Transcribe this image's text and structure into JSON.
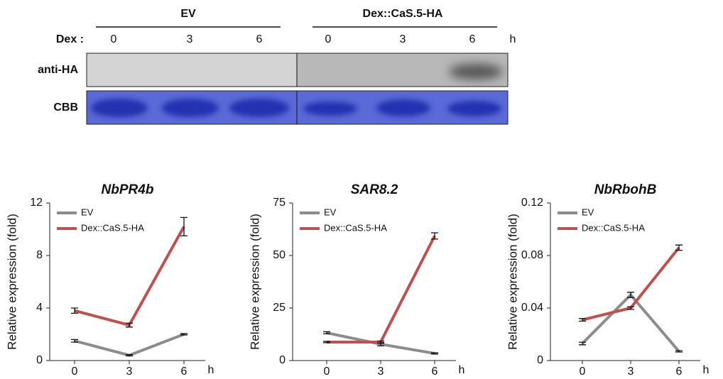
{
  "blot": {
    "groups": [
      "EV",
      "Dex::CaS.5-HA"
    ],
    "treatment_label": "Dex :",
    "timepoints": [
      "0",
      "3",
      "6",
      "0",
      "3",
      "6"
    ],
    "unit": "h",
    "rows": [
      "anti-HA",
      "CBB"
    ]
  },
  "chart_data": [
    {
      "type": "line",
      "title": "NbPR4b",
      "ylabel": "Relative expression (fold)",
      "xunit": "h",
      "categories": [
        "0",
        "3",
        "6"
      ],
      "ylim": [
        0,
        12
      ],
      "yticks": [
        0,
        4,
        8,
        12
      ],
      "series": [
        {
          "name": "EV",
          "color": "#8c8c8c",
          "values": [
            1.5,
            0.4,
            2.0
          ],
          "errors": [
            0.1,
            0.05,
            0.05
          ]
        },
        {
          "name": "Dex::CaS.5-HA",
          "color": "#c0504d",
          "values": [
            3.8,
            2.7,
            10.2
          ],
          "errors": [
            0.2,
            0.15,
            0.7
          ]
        }
      ]
    },
    {
      "type": "line",
      "title": "SAR8.2",
      "ylabel": "Relative expression (fold)",
      "xunit": "h",
      "categories": [
        "0",
        "3",
        "6"
      ],
      "ylim": [
        0,
        75
      ],
      "yticks": [
        0,
        25,
        50,
        75
      ],
      "series": [
        {
          "name": "EV",
          "color": "#8c8c8c",
          "values": [
            13.2,
            7.8,
            3.4
          ],
          "errors": [
            0.5,
            0.8,
            0.3
          ]
        },
        {
          "name": "Dex::CaS.5-HA",
          "color": "#c0504d",
          "values": [
            8.8,
            8.8,
            59.3
          ],
          "errors": [
            0.3,
            0.5,
            1.5
          ]
        }
      ]
    },
    {
      "type": "line",
      "title": "NbRbohB",
      "ylabel": "Relative expression (fold)",
      "xunit": "h",
      "categories": [
        "0",
        "3",
        "6"
      ],
      "ylim": [
        0,
        0.12
      ],
      "yticks": [
        0,
        0.04,
        0.08,
        0.12
      ],
      "series": [
        {
          "name": "EV",
          "color": "#8c8c8c",
          "values": [
            0.013,
            0.05,
            0.007
          ],
          "errors": [
            0.001,
            0.002,
            0.0005
          ]
        },
        {
          "name": "Dex::CaS.5-HA",
          "color": "#c0504d",
          "values": [
            0.031,
            0.04,
            0.086
          ],
          "errors": [
            0.001,
            0.001,
            0.002
          ]
        }
      ]
    }
  ]
}
